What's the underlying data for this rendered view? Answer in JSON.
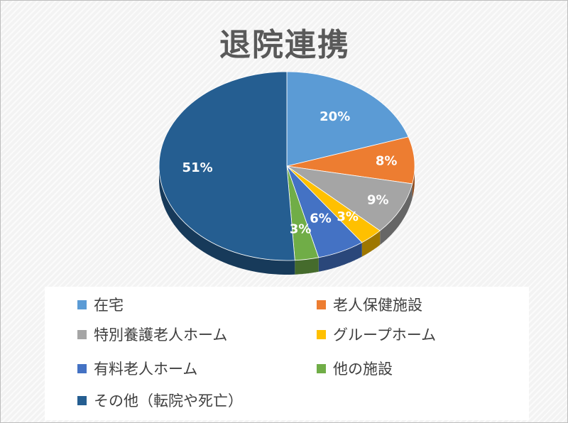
{
  "chart_data": {
    "type": "pie",
    "title": "退院連携",
    "categories": [
      "在宅",
      "老人保健施設",
      "特別養護老人ホーム",
      "グループホーム",
      "有料老人ホーム",
      "他の施設",
      "その他（転院や死亡）"
    ],
    "values": [
      20,
      8,
      9,
      3,
      6,
      3,
      51
    ],
    "labels": [
      "20%",
      "8%",
      "9%",
      "3%",
      "6%",
      "3%",
      "51%"
    ],
    "colors": [
      "#5b9bd5",
      "#ed7d31",
      "#a5a5a5",
      "#ffc000",
      "#4472c4",
      "#70ad47",
      "#255e91"
    ],
    "legend_position": "bottom",
    "style": "3d-pie"
  }
}
